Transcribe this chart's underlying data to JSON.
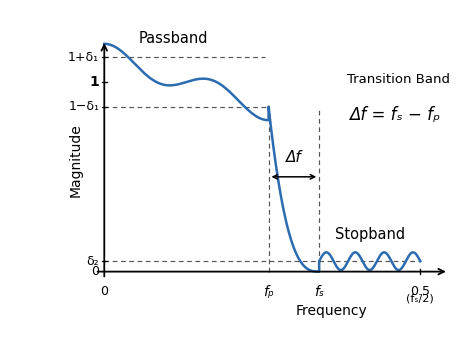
{
  "bg_color": "#ffffff",
  "line_color": "#2b6cb0",
  "dashed_color": "#555555",
  "fp": 0.26,
  "fs": 0.34,
  "delta1": 0.13,
  "delta2": 0.055,
  "xlim": [
    -0.03,
    0.57
  ],
  "ylim": [
    -0.12,
    1.3
  ],
  "ylabel": "Magnitude",
  "xlabel": "Frequency",
  "passband_label": "Passband",
  "stopband_label": "Stopband",
  "transition_label_1": "Transition Band",
  "transition_label_2": "Δf = fₛ − fₚ",
  "deltaf_label": "Δf",
  "ann_1plus": "1+δ₁",
  "ann_1": "1",
  "ann_1minus": "1−δ₁",
  "ann_d2": "δ₂",
  "ann_0y": "0",
  "ann_0x": "0",
  "ann_fp": "fₚ",
  "ann_fs": "fₛ",
  "ann_05": "0.5",
  "ann_fs2": "(fₛ/2)"
}
